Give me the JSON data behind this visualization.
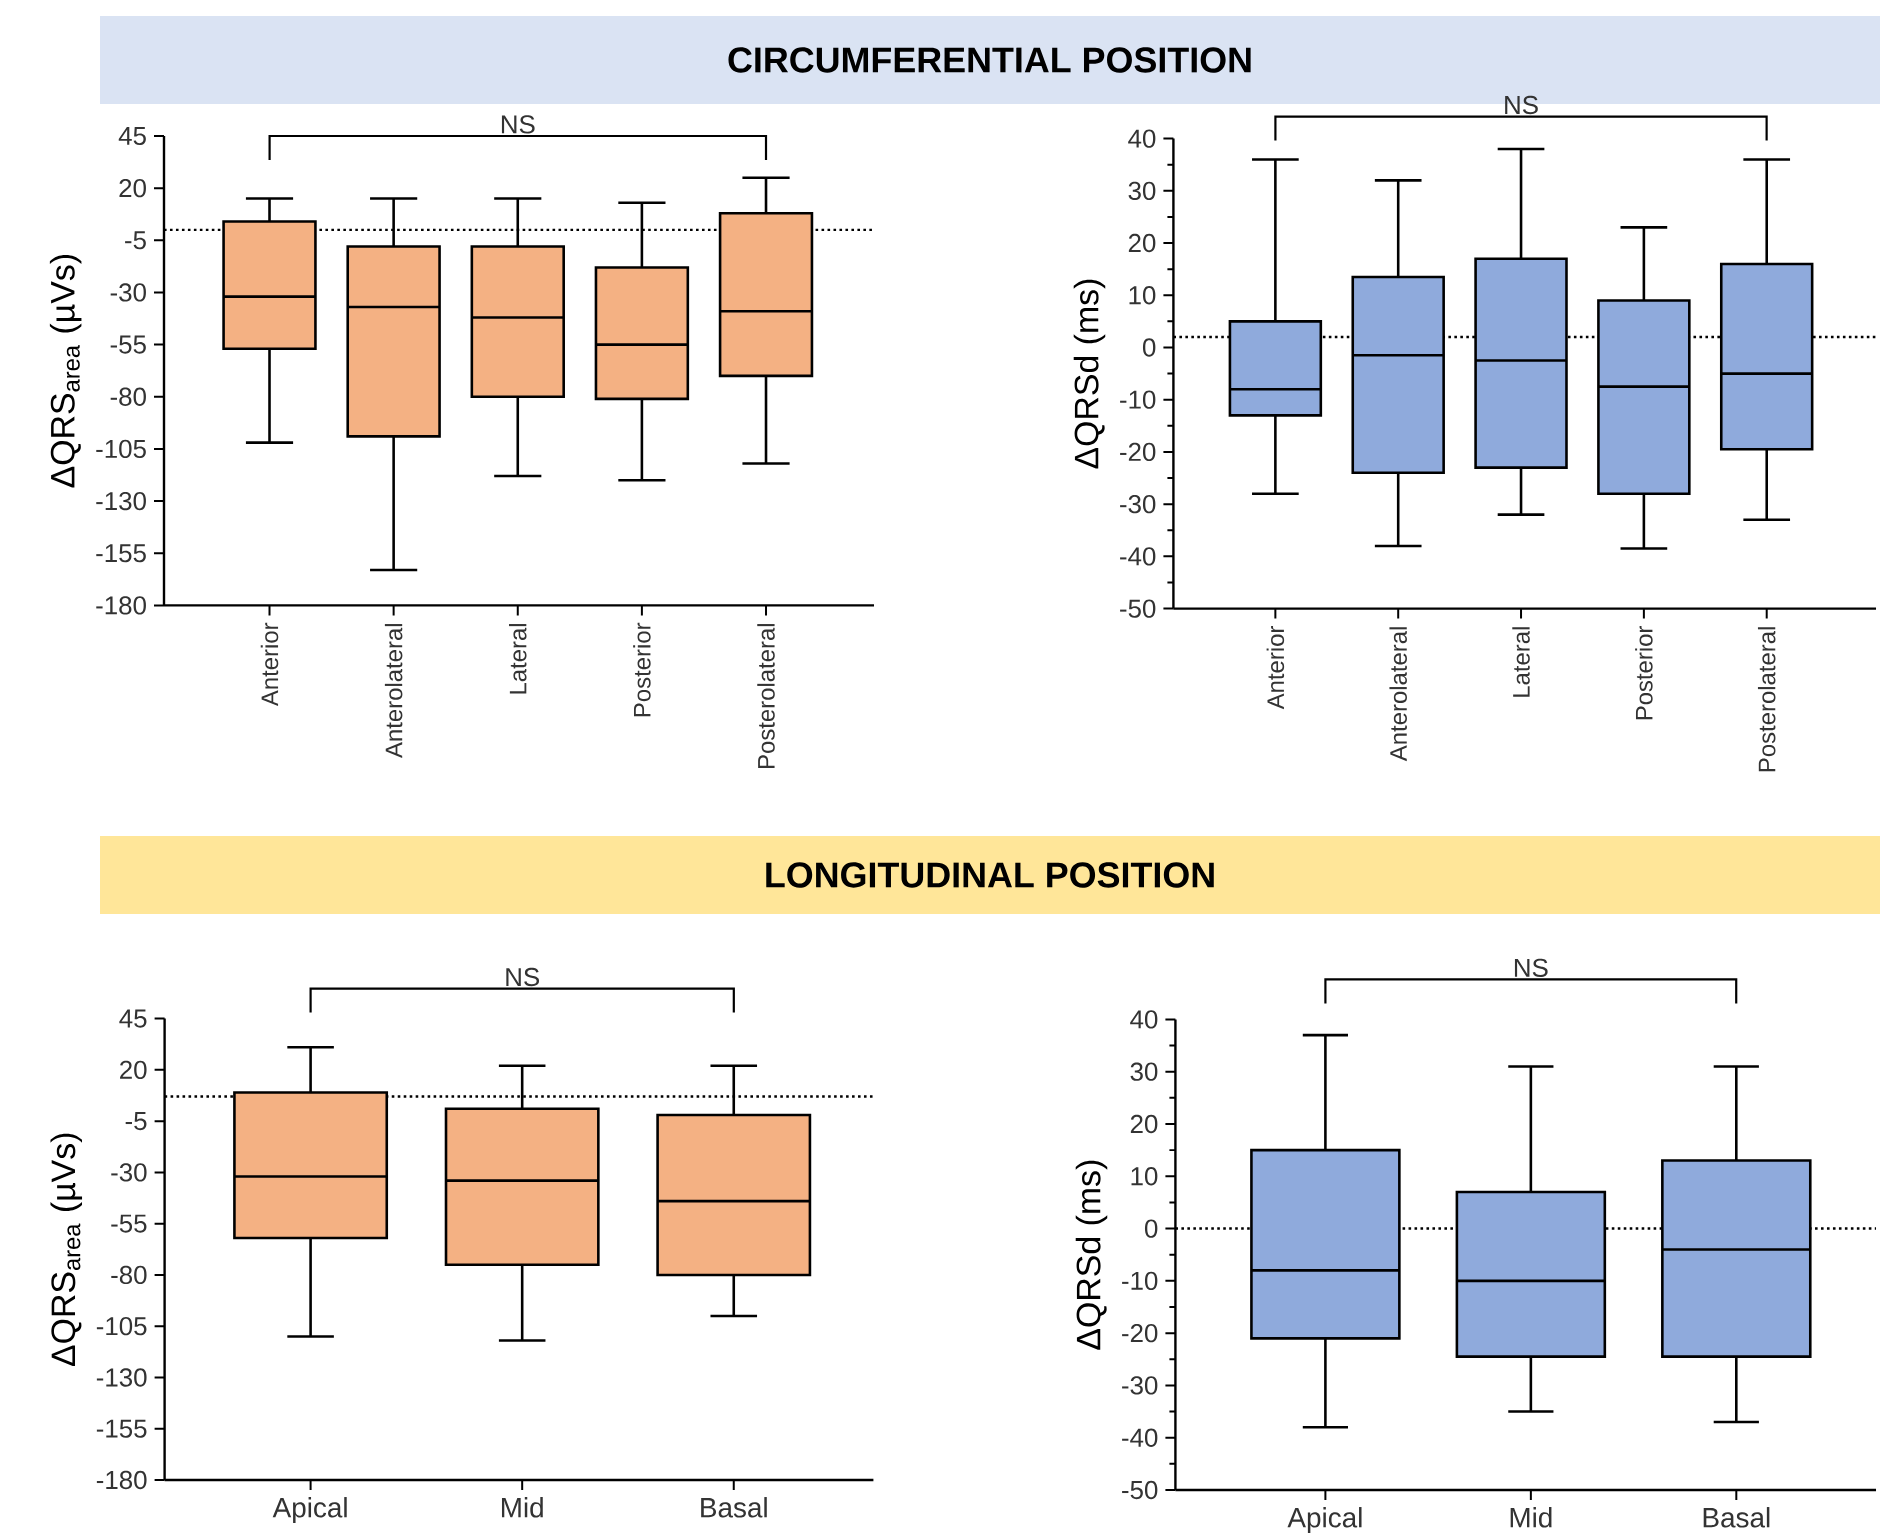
{
  "chart_data": [
    {
      "type": "box",
      "title": "CIRCUMFERENTIAL POSITION",
      "ylabel": "ΔQRS$_{area}$ (µVs)",
      "categories": [
        "Anterior",
        "Anterolateral",
        "Lateral",
        "Posterior",
        "Posterolateral"
      ],
      "ylim": [
        -180,
        45
      ],
      "yticks": [
        -180,
        -155,
        -130,
        -105,
        -80,
        -55,
        -30,
        -5,
        20,
        45
      ],
      "ref_lines": [
        {
          "axis": "y",
          "value": 0,
          "line_style": "dotted"
        }
      ],
      "annotations": [
        "NS"
      ],
      "series": [
        {
          "color": "#f4b183",
          "boxes": [
            {
              "low": -102,
              "q1": -57,
              "median": -32,
              "q3": 4,
              "high": 15
            },
            {
              "low": -163,
              "q1": -99,
              "median": -37,
              "q3": -8,
              "high": 15
            },
            {
              "low": -118,
              "q1": -80,
              "median": -42,
              "q3": -8,
              "high": 15
            },
            {
              "low": -120,
              "q1": -81,
              "median": -55,
              "q3": -18,
              "high": 13
            },
            {
              "low": -112,
              "q1": -70,
              "median": -39,
              "q3": 8,
              "high": 25
            }
          ]
        }
      ]
    },
    {
      "type": "box",
      "ylabel": "ΔQRSd (ms)",
      "categories": [
        "Anterior",
        "Anterolateral",
        "Lateral",
        "Posterior",
        "Posterolateral"
      ],
      "ylim": [
        -50,
        40
      ],
      "yticks": [
        -50,
        -40,
        -30,
        -20,
        -10,
        0,
        10,
        20,
        30,
        40
      ],
      "ref_lines": [
        {
          "axis": "y",
          "value": 2,
          "line_style": "dotted"
        }
      ],
      "annotations": [
        "NS"
      ],
      "series": [
        {
          "color": "#8faadc",
          "boxes": [
            {
              "low": -28,
              "q1": -13,
              "median": -8,
              "q3": 5,
              "high": 36
            },
            {
              "low": -38,
              "q1": -24,
              "median": -1.5,
              "q3": 13.5,
              "high": 32
            },
            {
              "low": -32,
              "q1": -23,
              "median": -2.5,
              "q3": 17,
              "high": 38
            },
            {
              "low": -38.5,
              "q1": -28,
              "median": -7.5,
              "q3": 9,
              "high": 23
            },
            {
              "low": -33,
              "q1": -19.5,
              "median": -5,
              "q3": 16,
              "high": 36
            }
          ]
        }
      ]
    },
    {
      "type": "box",
      "title": "LONGITUDINAL POSITION",
      "ylabel": "ΔQRS$_{area}$ (µVs)",
      "categories": [
        "Apical",
        "Mid",
        "Basal"
      ],
      "ylim": [
        -180,
        45
      ],
      "yticks": [
        -180,
        -155,
        -130,
        -105,
        -80,
        -55,
        -30,
        -5,
        20,
        45
      ],
      "ref_lines": [
        {
          "axis": "y",
          "value": 7,
          "line_style": "dotted"
        }
      ],
      "annotations": [
        "NS"
      ],
      "series": [
        {
          "color": "#f4b183",
          "boxes": [
            {
              "low": -110,
              "q1": -62,
              "median": -32,
              "q3": 9,
              "high": 31
            },
            {
              "low": -112,
              "q1": -75,
              "median": -34,
              "q3": 1,
              "high": 22
            },
            {
              "low": -100,
              "q1": -80,
              "median": -44,
              "q3": -2,
              "high": 22
            }
          ]
        }
      ]
    },
    {
      "type": "box",
      "ylabel": "ΔQRSd (ms)",
      "categories": [
        "Apical",
        "Mid",
        "Basal"
      ],
      "ylim": [
        -50,
        40
      ],
      "yticks": [
        -50,
        -40,
        -30,
        -20,
        -10,
        0,
        10,
        20,
        30,
        40
      ],
      "ref_lines": [
        {
          "axis": "y",
          "value": 0,
          "line_style": "dotted"
        }
      ],
      "annotations": [
        "NS"
      ],
      "series": [
        {
          "color": "#8faadc",
          "boxes": [
            {
              "low": -38,
              "q1": -21,
              "median": -8,
              "q3": 15,
              "high": 37
            },
            {
              "low": -35,
              "q1": -24.5,
              "median": -10,
              "q3": 7,
              "high": 31
            },
            {
              "low": -37,
              "q1": -24.5,
              "median": -4,
              "q3": 13,
              "high": 31
            }
          ]
        }
      ]
    }
  ]
}
